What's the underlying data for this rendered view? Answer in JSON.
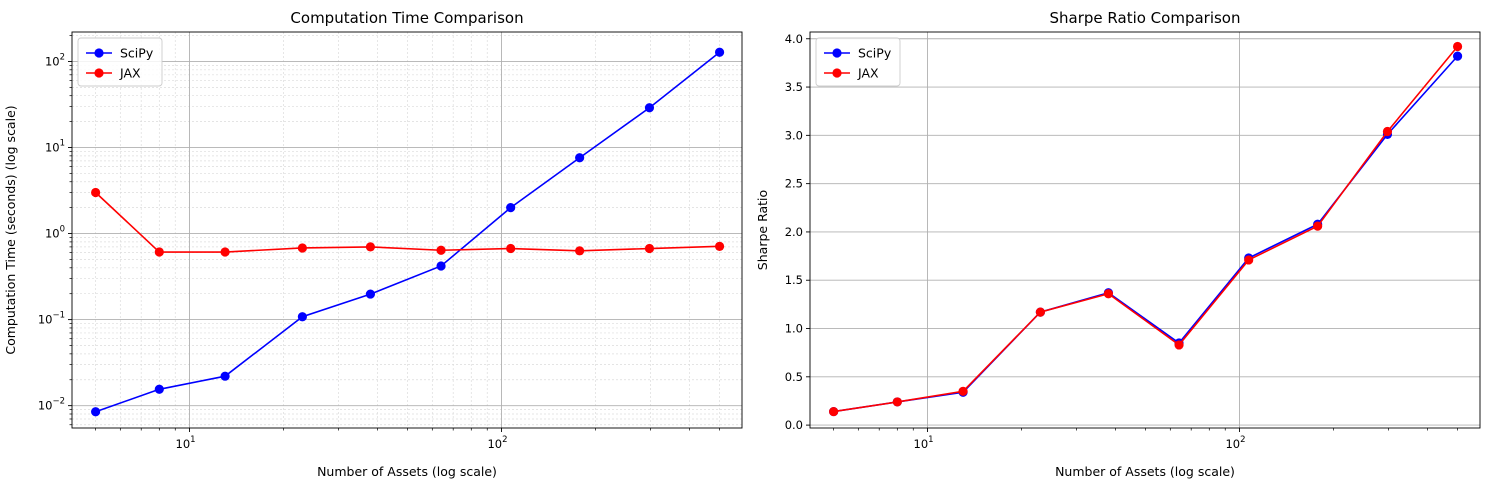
{
  "chart_data": [
    {
      "type": "line",
      "title": "Computation Time Comparison",
      "xlabel": "Number of Assets (log scale)",
      "ylabel": "Computation Time (seconds) (log scale)",
      "xscale": "log",
      "yscale": "log",
      "xlim": [
        4.2,
        590
      ],
      "ylim": [
        0.0055,
        220
      ],
      "xticks": [
        {
          "value": 10,
          "base": "10",
          "exp": "1"
        },
        {
          "value": 100,
          "base": "10",
          "exp": "2"
        }
      ],
      "yticks": [
        {
          "value": 0.01,
          "base": "10",
          "exp": "−2"
        },
        {
          "value": 0.1,
          "base": "10",
          "exp": "−1"
        },
        {
          "value": 1,
          "base": "10",
          "exp": "0"
        },
        {
          "value": 10,
          "base": "10",
          "exp": "1"
        },
        {
          "value": 100,
          "base": "10",
          "exp": "2"
        }
      ],
      "grid": "major and minor",
      "legend_position": "upper-left",
      "x": [
        5,
        8,
        13,
        23,
        38,
        64,
        107,
        178,
        298,
        500
      ],
      "series": [
        {
          "name": "SciPy",
          "color": "#0000ff",
          "values": [
            0.0085,
            0.0155,
            0.022,
            0.108,
            0.198,
            0.42,
            2.0,
            7.6,
            29.0,
            128.0
          ]
        },
        {
          "name": "JAX",
          "color": "#ff0000",
          "values": [
            3.0,
            0.61,
            0.61,
            0.68,
            0.7,
            0.64,
            0.67,
            0.63,
            0.67,
            0.71
          ]
        }
      ]
    },
    {
      "type": "line",
      "title": "Sharpe Ratio Comparison",
      "xlabel": "Number of Assets (log scale)",
      "ylabel": "Sharpe Ratio",
      "xscale": "log",
      "yscale": "linear",
      "xlim": [
        4.2,
        590
      ],
      "ylim": [
        -0.03,
        4.07
      ],
      "xticks": [
        {
          "value": 10,
          "base": "10",
          "exp": "1"
        },
        {
          "value": 100,
          "base": "10",
          "exp": "2"
        }
      ],
      "yticks": [
        {
          "value": 0.0,
          "label": "0.0"
        },
        {
          "value": 0.5,
          "label": "0.5"
        },
        {
          "value": 1.0,
          "label": "1.0"
        },
        {
          "value": 1.5,
          "label": "1.5"
        },
        {
          "value": 2.0,
          "label": "2.0"
        },
        {
          "value": 2.5,
          "label": "2.5"
        },
        {
          "value": 3.0,
          "label": "3.0"
        },
        {
          "value": 3.5,
          "label": "3.5"
        },
        {
          "value": 4.0,
          "label": "4.0"
        }
      ],
      "grid": "major",
      "legend_position": "upper-left",
      "x": [
        5,
        8,
        13,
        23,
        38,
        64,
        107,
        178,
        298,
        500
      ],
      "series": [
        {
          "name": "SciPy",
          "color": "#0000ff",
          "values": [
            0.14,
            0.24,
            0.34,
            1.17,
            1.37,
            0.85,
            1.73,
            2.08,
            3.01,
            3.82
          ]
        },
        {
          "name": "JAX",
          "color": "#ff0000",
          "values": [
            0.14,
            0.24,
            0.35,
            1.17,
            1.36,
            0.83,
            1.71,
            2.06,
            3.04,
            3.92
          ]
        }
      ]
    }
  ]
}
